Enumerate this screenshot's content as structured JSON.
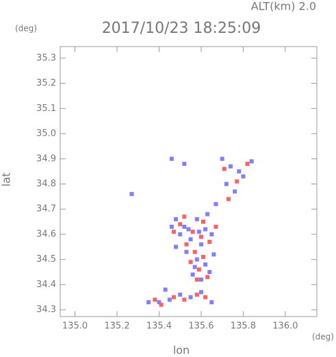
{
  "chart_data": {
    "type": "scatter",
    "title": "2017/10/23 18:25:09",
    "annotation": "ALT(km)  2.0",
    "y_unit": "(deg)",
    "x_unit": "(deg)",
    "xlabel": "lon",
    "ylabel": "lat",
    "xlim": [
      134.93,
      136.15
    ],
    "ylim": [
      34.273,
      35.346
    ],
    "xticks": [
      {
        "value": 135,
        "label": "135.0"
      },
      135.2,
      135.4,
      135.6,
      135.8,
      {
        "value": 136,
        "label": "136.0"
      }
    ],
    "yticks": [
      34.3,
      34.4,
      34.5,
      34.6,
      34.7,
      34.8,
      34.9,
      {
        "value": 35,
        "label": "35.0"
      },
      35.1,
      35.2,
      35.3
    ],
    "series": [
      {
        "color": "#8080ff",
        "x": [
          135.27,
          135.46,
          135.52,
          135.74,
          135.8,
          135.84,
          135.72,
          135.76,
          135.67,
          135.48,
          135.52,
          135.58,
          135.62,
          135.5,
          135.46,
          135.55,
          135.6,
          135.65,
          135.53,
          135.58,
          135.62,
          135.56,
          135.6,
          135.64,
          135.57,
          135.48,
          135.66,
          135.4,
          135.45,
          135.5,
          135.55,
          135.6,
          135.35,
          135.65,
          135.43,
          135.78,
          135.7,
          135.63,
          135.54,
          135.59
        ],
        "y": [
          34.76,
          34.9,
          34.88,
          34.87,
          34.83,
          34.89,
          34.8,
          34.77,
          34.72,
          34.66,
          34.63,
          34.66,
          34.62,
          34.6,
          34.63,
          34.58,
          34.56,
          34.6,
          34.53,
          34.5,
          34.48,
          34.44,
          34.42,
          34.45,
          34.47,
          34.55,
          34.52,
          34.33,
          34.34,
          34.36,
          34.35,
          34.37,
          34.33,
          34.33,
          34.38,
          34.85,
          34.9,
          34.68,
          34.62,
          34.61
        ]
      },
      {
        "color": "#ff6060",
        "x": [
          135.82,
          135.71,
          135.77,
          135.5,
          135.56,
          135.61,
          135.64,
          135.53,
          135.57,
          135.61,
          135.55,
          135.63,
          135.58,
          135.59,
          135.47,
          135.41,
          135.47,
          135.52,
          135.58,
          135.38,
          135.62,
          135.67,
          135.52,
          135.73,
          135.6
        ],
        "y": [
          34.88,
          34.86,
          34.81,
          34.64,
          34.61,
          34.65,
          34.57,
          34.56,
          34.53,
          34.51,
          34.49,
          34.43,
          34.42,
          34.46,
          34.61,
          34.32,
          34.35,
          34.34,
          34.36,
          34.34,
          34.35,
          34.63,
          34.67,
          34.74,
          34.59
        ]
      }
    ]
  }
}
